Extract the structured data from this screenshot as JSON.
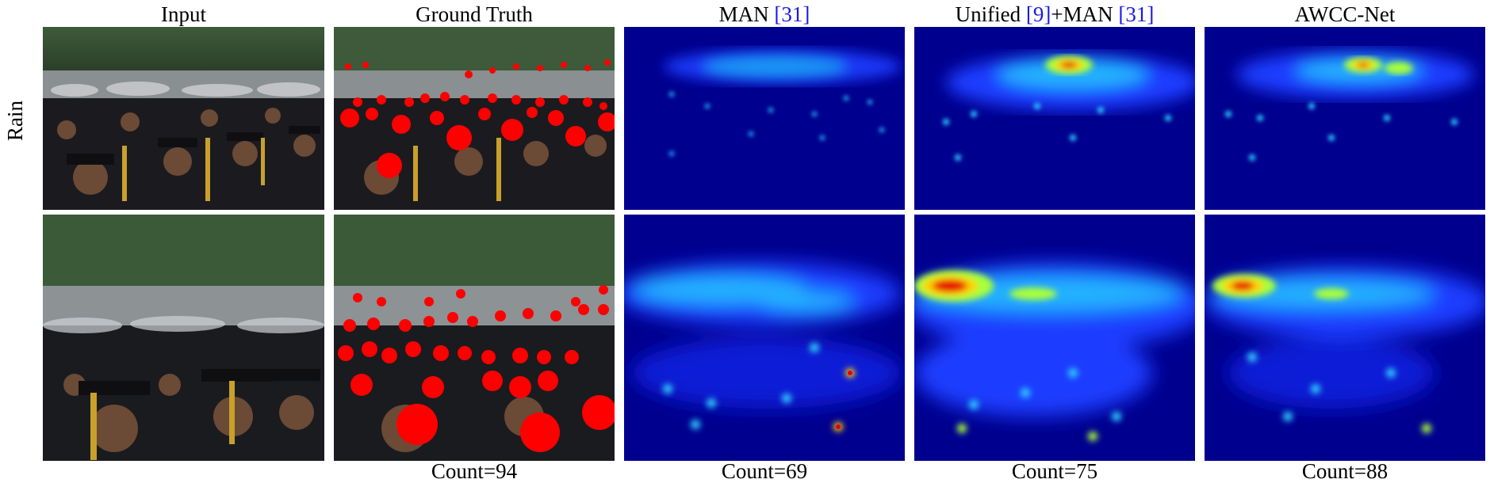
{
  "columns": [
    {
      "label": "Input"
    },
    {
      "label": "Ground Truth"
    },
    {
      "label_main": "MAN ",
      "cite1": "[31]"
    },
    {
      "label_main": "Unified ",
      "cite1": "[9]",
      "label_mid": "+MAN ",
      "cite2": "[31]"
    },
    {
      "label": "AWCC-Net"
    }
  ],
  "rows": [
    {
      "label": "Rain"
    }
  ],
  "counts": {
    "ground_truth": "Count=94",
    "man": "Count=69",
    "unified_man": "Count=75",
    "awcc_net": "Count=88"
  },
  "colors": {
    "density_background": "#00008f",
    "density_peak": "#e60000",
    "gt_marker": "#ff0000",
    "citation": "#1a1ae6"
  }
}
